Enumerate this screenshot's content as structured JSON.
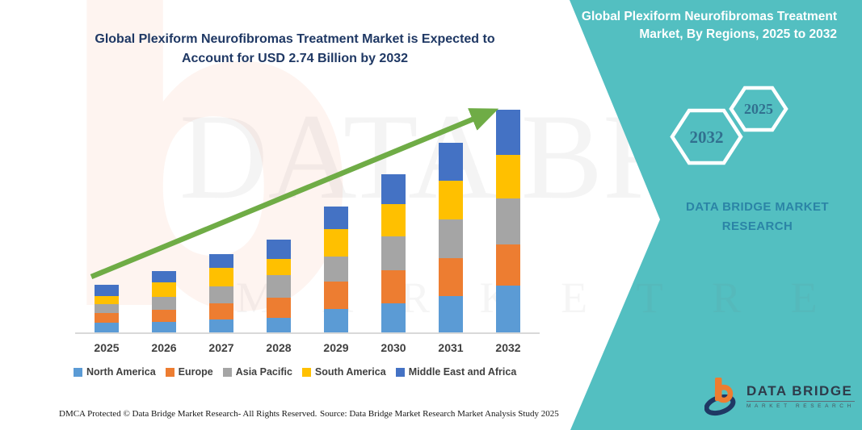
{
  "banner": {
    "chart_title": "Global Plexiform Neurofibromas Treatment Market is Expected to Account for USD 2.74 Billion by 2032",
    "right_panel": {
      "heading": "Global Plexiform Neurofibromas Treatment Market, By Regions, 2025 to 2032",
      "hexagon_large_label": "2032",
      "hexagon_small_label": "2025",
      "brand_line1": "DATA BRIDGE MARKET",
      "brand_line2": "RESEARCH"
    },
    "logo": {
      "name": "DATA BRIDGE",
      "tagline": "MARKET RESEARCH"
    },
    "watermark": {
      "glyph": "b",
      "text_primary": "DATA BRIDGE",
      "text_secondary": "M A R K E T   R E S E A R C H"
    },
    "footer": {
      "dmca": "DMCA Protected © Data Bridge Market Research-  All Rights Reserved.",
      "source": "Source: Data Bridge Market Research  Market Analysis Study 2025"
    }
  },
  "chart_data": {
    "type": "bar",
    "stacked": true,
    "title": "Global Plexiform Neurofibromas Treatment Market is Expected to Account for USD 2.74 Billion by 2032",
    "unit": "USD Billion (estimated from bar heights; only the 2032 total of 2.74 is labeled)",
    "categories": [
      "2025",
      "2026",
      "2027",
      "2028",
      "2029",
      "2030",
      "2031",
      "2032"
    ],
    "series": [
      {
        "name": "North America",
        "color": "#5B9BD5",
        "values": [
          0.13,
          0.14,
          0.17,
          0.19,
          0.3,
          0.37,
          0.46,
          0.58
        ]
      },
      {
        "name": "Europe",
        "color": "#ED7D31",
        "values": [
          0.12,
          0.15,
          0.2,
          0.25,
          0.33,
          0.4,
          0.46,
          0.51
        ]
      },
      {
        "name": "Asia Pacific",
        "color": "#A5A5A5",
        "values": [
          0.11,
          0.16,
          0.2,
          0.27,
          0.31,
          0.42,
          0.48,
          0.56
        ]
      },
      {
        "name": "South America",
        "color": "#FFC000",
        "values": [
          0.1,
          0.17,
          0.23,
          0.2,
          0.34,
          0.39,
          0.47,
          0.54
        ]
      },
      {
        "name": "Middle East and Africa",
        "color": "#4472C4",
        "values": [
          0.14,
          0.14,
          0.17,
          0.24,
          0.28,
          0.37,
          0.47,
          0.55
        ]
      }
    ],
    "totals_estimated": [
      0.6,
      0.76,
      0.97,
      1.15,
      1.56,
      1.95,
      2.34,
      2.74
    ],
    "xlabel": "",
    "ylabel": "",
    "ylim": [
      0,
      2.9
    ],
    "gridlines": false,
    "y_axis_visible": false,
    "legend_position": "bottom",
    "annotations": [
      "green upward trend arrow across bars"
    ]
  },
  "colors": {
    "teal_panel": "#53BFC1",
    "title_navy": "#1F3864",
    "axis_label_gray": "#404040",
    "hexagon_label_blue": "#31708F",
    "brand_text_on_teal": "#2B84A6",
    "arrow_green": "#6FAC46",
    "axis_line_gray": "#D9D9D9"
  }
}
